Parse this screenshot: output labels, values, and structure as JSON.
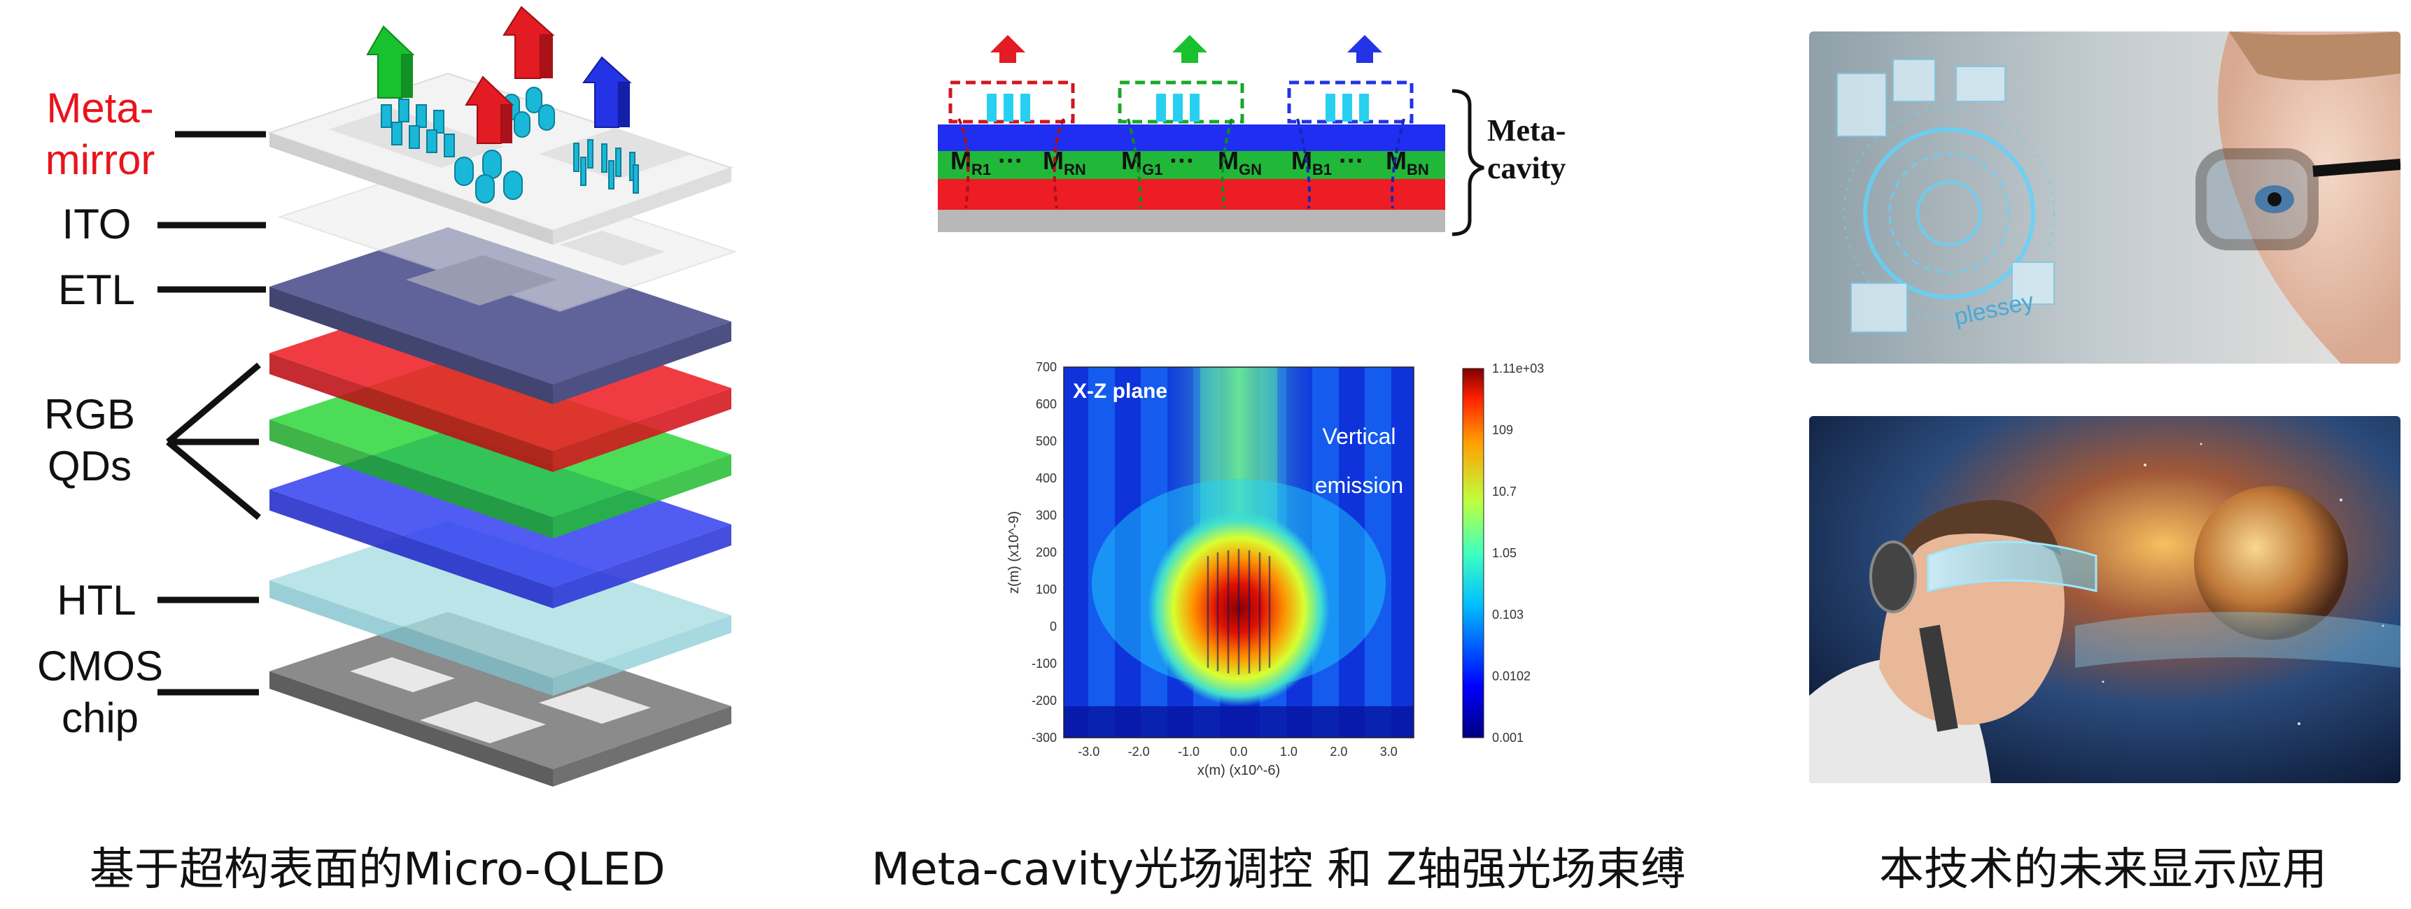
{
  "panel1": {
    "labels": {
      "meta_mirror": "Meta-\nmirror",
      "ito": "ITO",
      "etl": "ETL",
      "rgb_qds": "RGB\nQDs",
      "htl": "HTL",
      "cmos_chip": "CMOS\nchip"
    },
    "caption": "基于超构表面的Micro-QLED",
    "colors": {
      "meta_mirror_label": "#e8141c",
      "red_layer": "#ee1c24",
      "green_layer": "#2bd23a",
      "blue_layer": "#2f3cf0",
      "etl": "#5c6098",
      "htl": "#9fd8e0",
      "cmos": "#8a8a8a",
      "pillars": "#19b8d8"
    },
    "icons": [
      "green-up-arrow-icon",
      "red-up-arrow-icon",
      "blue-up-arrow-icon"
    ]
  },
  "panel2": {
    "cavity": {
      "bracket_label": "Meta-\ncavity",
      "modes": [
        "M",
        "R1",
        "···",
        "M",
        "RN",
        "M",
        "G1",
        "···",
        "M",
        "GN",
        "M",
        "B1",
        "···",
        "M",
        "BN"
      ]
    },
    "field_map": {
      "plane_label": "X-Z plane",
      "annotation": "Vertical\nemission",
      "xlabel": "x(m) (x10^-6)",
      "ylabel": "z(m) (x10^-9)",
      "x_ticks": [
        "-3.0",
        "-2.0",
        "-1.0",
        "0.0",
        "1.0",
        "2.0",
        "3.0"
      ],
      "y_ticks": [
        "700",
        "600",
        "500",
        "400",
        "300",
        "200",
        "100",
        "0",
        "-100",
        "-200",
        "-300"
      ],
      "colorbar_ticks": [
        "1.11e+03",
        "109",
        "10.7",
        "1.05",
        "0.103",
        "0.0102",
        "0.001"
      ],
      "xlim": [
        -3.5,
        3.5
      ],
      "ylim": [
        -300,
        700
      ],
      "colorscale": "log-jet"
    },
    "caption": "Meta-cavity光场调控 和 Z轴强光场束缚"
  },
  "panel3": {
    "caption": "本技术的未来显示应用",
    "photo_text": "plessey",
    "photos": [
      "ar-glasses-woman-photo",
      "vr-visor-man-photo"
    ]
  }
}
